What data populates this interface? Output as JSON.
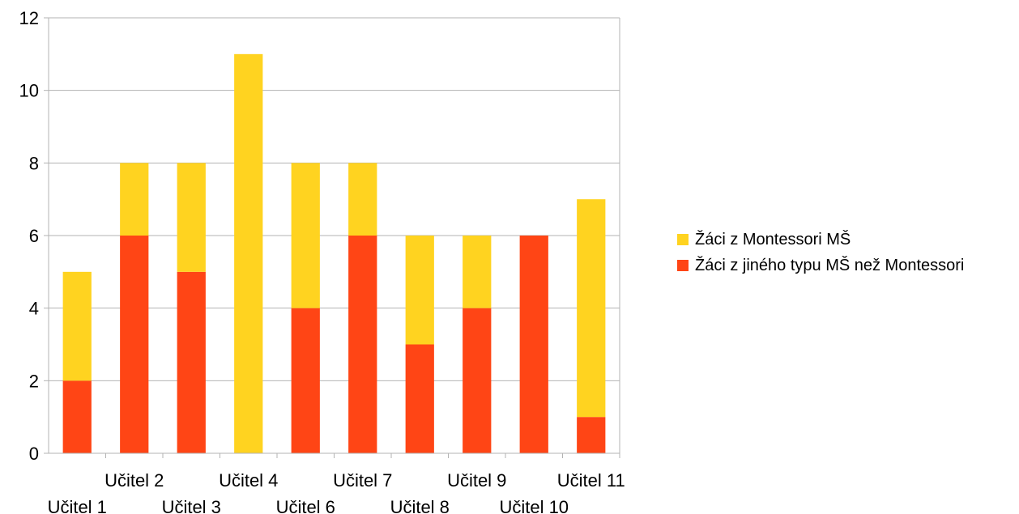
{
  "chart_data": {
    "type": "bar",
    "stacked": true,
    "categories": [
      "Učitel 1",
      "Učitel 2",
      "Učitel 3",
      "Učitel 4",
      "Učitel 6",
      "Učitel 7",
      "Učitel 8",
      "Učitel 9",
      "Učitel 10",
      "Učitel 11"
    ],
    "series": [
      {
        "name": "Žáci z jiného typu MŠ než Montessori",
        "color": "#ff4515",
        "values": [
          2,
          6,
          5,
          0,
          4,
          6,
          3,
          4,
          6,
          1
        ]
      },
      {
        "name": "Žáci z Montessori MŠ",
        "color": "#ffd320",
        "values": [
          3,
          2,
          3,
          11,
          4,
          2,
          3,
          2,
          0,
          6
        ]
      }
    ],
    "ylim": [
      0,
      12
    ],
    "yticks": [
      0,
      2,
      4,
      6,
      8,
      10,
      12
    ],
    "grid": true,
    "legend_position": "right",
    "title": "",
    "xlabel": "",
    "ylabel": ""
  },
  "legend": [
    {
      "label": "Žáci z Montessori MŠ",
      "color": "#ffd320"
    },
    {
      "label": "Žáci z jiného typu MŠ než Montessori",
      "color": "#ff4515"
    }
  ]
}
